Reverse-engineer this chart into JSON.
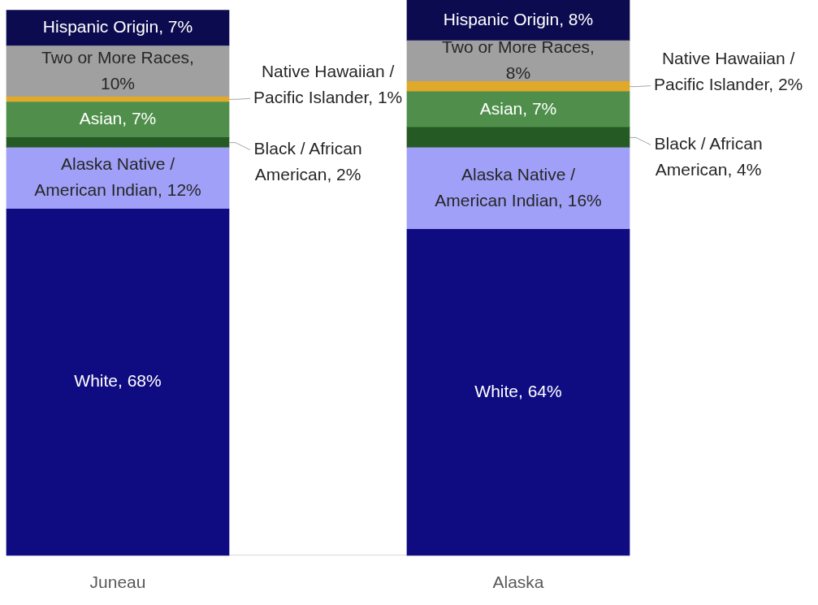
{
  "chart_data": {
    "type": "bar",
    "stacked": true,
    "legend": false,
    "categories": [
      "Juneau",
      "Alaska"
    ],
    "series": [
      {
        "color": "#0f0c82",
        "values": [
          68,
          64
        ],
        "value_labels": [
          "White, 68%",
          "White, 64%"
        ]
      },
      {
        "color": "#a0a0f8",
        "values": [
          12,
          16
        ],
        "value_labels": [
          "Alaska Native / American Indian, 12%",
          "Alaska Native / American Indian, 16%"
        ]
      },
      {
        "color": "#265a24",
        "values": [
          2,
          4
        ],
        "value_labels": [
          "Black / African American, 2%",
          "Black / African American, 4%"
        ]
      },
      {
        "color": "#4f8f4b",
        "values": [
          7,
          7
        ],
        "value_labels": [
          "Asian, 7%",
          "Asian, 7%"
        ]
      },
      {
        "color": "#e0a92a",
        "values": [
          1,
          2
        ],
        "value_labels": [
          "Native Hawaiian / Pacific Islander, 1%",
          "Native Hawaiian / Pacific Islander, 2%"
        ]
      },
      {
        "color": "#a0a0a0",
        "values": [
          10,
          8
        ],
        "value_labels": [
          "Two or More Races, 10%",
          "Two or More Races, 8%"
        ]
      },
      {
        "color": "#0d0b50",
        "values": [
          7,
          8
        ],
        "value_labels": [
          "Hispanic Origin, 7%",
          "Hispanic Origin, 8%"
        ]
      }
    ]
  }
}
